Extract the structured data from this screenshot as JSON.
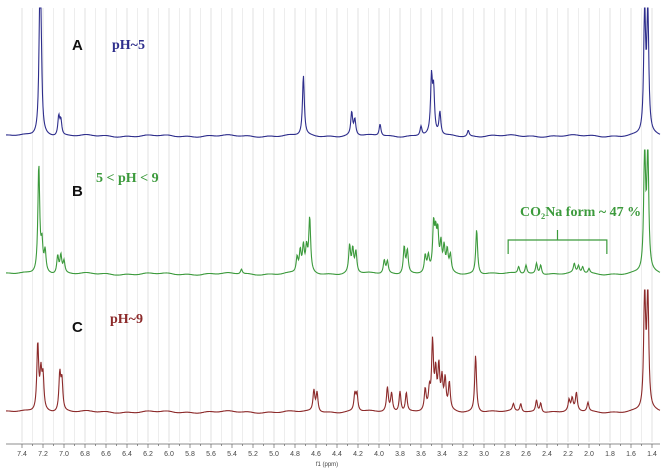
{
  "chart_data": {
    "type": "line",
    "xlabel": "f1 (ppm)",
    "x_axis": {
      "min": 1.4,
      "max": 7.4,
      "reversed": true,
      "tick_step": 0.1,
      "label_step": 0.2
    },
    "grid": true,
    "panels": [
      {
        "letter": "A",
        "condition": "pH~5",
        "color": "#2e2e8c",
        "peaks": [
          {
            "ppm": 7.23,
            "height": 1.9
          },
          {
            "ppm": 7.22,
            "height": 1.3
          },
          {
            "ppm": 7.05,
            "height": 0.32
          },
          {
            "ppm": 7.03,
            "height": 0.25
          },
          {
            "ppm": 4.72,
            "height": 1.0
          },
          {
            "ppm": 4.26,
            "height": 0.38
          },
          {
            "ppm": 4.23,
            "height": 0.26
          },
          {
            "ppm": 3.99,
            "height": 0.2
          },
          {
            "ppm": 3.6,
            "height": 0.16
          },
          {
            "ppm": 3.5,
            "height": 0.92
          },
          {
            "ppm": 3.48,
            "height": 0.7
          },
          {
            "ppm": 3.42,
            "height": 0.38
          },
          {
            "ppm": 3.15,
            "height": 0.1
          },
          {
            "ppm": 1.47,
            "height": 6.0
          },
          {
            "ppm": 1.44,
            "height": 6.0
          }
        ]
      },
      {
        "letter": "B",
        "condition": "5 < pH < 9",
        "annotation": "CO₂Na form ~ 47 %",
        "bracket_ppm": [
          2.77,
          1.83
        ],
        "color": "#3c9a3c",
        "peaks": [
          {
            "ppm": 7.24,
            "height": 1.8
          },
          {
            "ppm": 7.21,
            "height": 0.45
          },
          {
            "ppm": 7.18,
            "height": 0.35
          },
          {
            "ppm": 7.06,
            "height": 0.3
          },
          {
            "ppm": 7.03,
            "height": 0.3
          },
          {
            "ppm": 7.0,
            "height": 0.2
          },
          {
            "ppm": 5.31,
            "height": 0.08
          },
          {
            "ppm": 4.78,
            "height": 0.25
          },
          {
            "ppm": 4.75,
            "height": 0.35
          },
          {
            "ppm": 4.72,
            "height": 0.42
          },
          {
            "ppm": 4.69,
            "height": 0.38
          },
          {
            "ppm": 4.66,
            "height": 0.9
          },
          {
            "ppm": 4.28,
            "height": 0.45
          },
          {
            "ppm": 4.25,
            "height": 0.38
          },
          {
            "ppm": 4.22,
            "height": 0.35
          },
          {
            "ppm": 3.95,
            "height": 0.22
          },
          {
            "ppm": 3.92,
            "height": 0.2
          },
          {
            "ppm": 3.76,
            "height": 0.45
          },
          {
            "ppm": 3.73,
            "height": 0.38
          },
          {
            "ppm": 3.56,
            "height": 0.28
          },
          {
            "ppm": 3.53,
            "height": 0.25
          },
          {
            "ppm": 3.48,
            "height": 0.75
          },
          {
            "ppm": 3.46,
            "height": 0.55
          },
          {
            "ppm": 3.44,
            "height": 0.6
          },
          {
            "ppm": 3.41,
            "height": 0.45
          },
          {
            "ppm": 3.38,
            "height": 0.4
          },
          {
            "ppm": 3.35,
            "height": 0.35
          },
          {
            "ppm": 3.32,
            "height": 0.28
          },
          {
            "ppm": 3.07,
            "height": 0.75
          },
          {
            "ppm": 2.67,
            "height": 0.12
          },
          {
            "ppm": 2.6,
            "height": 0.15
          },
          {
            "ppm": 2.5,
            "height": 0.18
          },
          {
            "ppm": 2.46,
            "height": 0.16
          },
          {
            "ppm": 2.14,
            "height": 0.15
          },
          {
            "ppm": 2.1,
            "height": 0.12
          },
          {
            "ppm": 2.06,
            "height": 0.11
          },
          {
            "ppm": 2.0,
            "height": 0.08
          },
          {
            "ppm": 1.47,
            "height": 6.0
          },
          {
            "ppm": 1.44,
            "height": 6.0
          }
        ]
      },
      {
        "letter": "C",
        "condition": "pH~9",
        "color": "#8c2a2a",
        "peaks": [
          {
            "ppm": 7.25,
            "height": 1.12
          },
          {
            "ppm": 7.22,
            "height": 0.6
          },
          {
            "ppm": 7.2,
            "height": 0.55
          },
          {
            "ppm": 7.04,
            "height": 0.62
          },
          {
            "ppm": 7.02,
            "height": 0.5
          },
          {
            "ppm": 4.62,
            "height": 0.35
          },
          {
            "ppm": 4.59,
            "height": 0.32
          },
          {
            "ppm": 4.23,
            "height": 0.28
          },
          {
            "ppm": 4.21,
            "height": 0.28
          },
          {
            "ppm": 3.92,
            "height": 0.4
          },
          {
            "ppm": 3.88,
            "height": 0.3
          },
          {
            "ppm": 3.8,
            "height": 0.35
          },
          {
            "ppm": 3.74,
            "height": 0.32
          },
          {
            "ppm": 3.56,
            "height": 0.35
          },
          {
            "ppm": 3.52,
            "height": 0.3
          },
          {
            "ppm": 3.49,
            "height": 1.1
          },
          {
            "ppm": 3.46,
            "height": 0.6
          },
          {
            "ppm": 3.43,
            "height": 0.7
          },
          {
            "ppm": 3.4,
            "height": 0.5
          },
          {
            "ppm": 3.37,
            "height": 0.5
          },
          {
            "ppm": 3.33,
            "height": 0.45
          },
          {
            "ppm": 3.08,
            "height": 0.95
          },
          {
            "ppm": 2.72,
            "height": 0.12
          },
          {
            "ppm": 2.65,
            "height": 0.14
          },
          {
            "ppm": 2.5,
            "height": 0.2
          },
          {
            "ppm": 2.46,
            "height": 0.16
          },
          {
            "ppm": 2.19,
            "height": 0.18
          },
          {
            "ppm": 2.16,
            "height": 0.2
          },
          {
            "ppm": 2.12,
            "height": 0.3
          },
          {
            "ppm": 2.01,
            "height": 0.15
          },
          {
            "ppm": 1.47,
            "height": 6.0
          },
          {
            "ppm": 1.44,
            "height": 6.0
          }
        ]
      }
    ]
  }
}
